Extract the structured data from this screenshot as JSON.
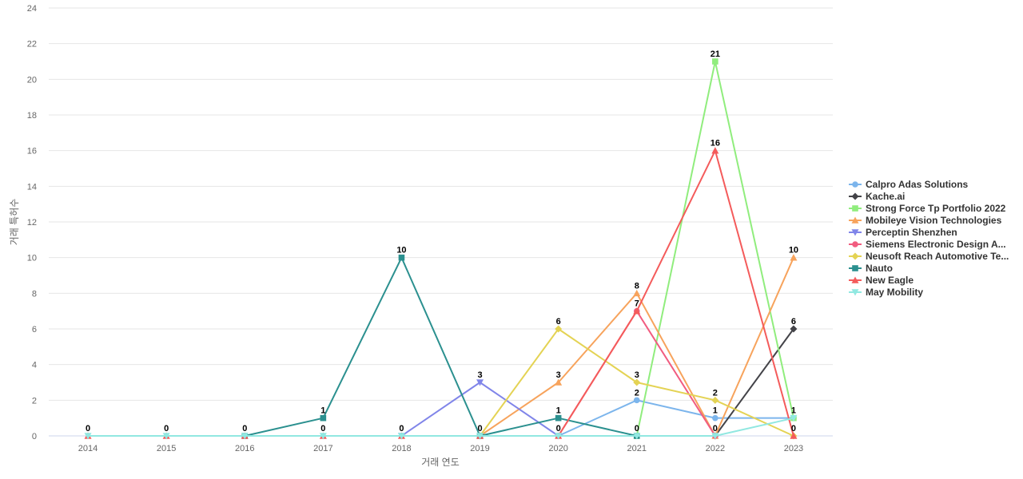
{
  "chart_data": {
    "type": "line",
    "xlabel": "거래 연도",
    "ylabel": "거래 특허수",
    "ylim": [
      0,
      24
    ],
    "yticks": [
      0,
      2,
      4,
      6,
      8,
      10,
      12,
      14,
      16,
      18,
      20,
      22,
      24
    ],
    "categories": [
      "2014",
      "2015",
      "2016",
      "2017",
      "2018",
      "2019",
      "2020",
      "2021",
      "2022",
      "2023"
    ],
    "grid": true,
    "legend_position": "right",
    "series": [
      {
        "name": "Calpro Adas Solutions",
        "color": "#7cb5ec",
        "marker": "circle",
        "values": [
          null,
          null,
          null,
          null,
          null,
          null,
          0,
          2,
          1,
          1
        ]
      },
      {
        "name": "Kache.ai",
        "color": "#434348",
        "marker": "diamond",
        "values": [
          null,
          null,
          null,
          null,
          null,
          null,
          null,
          null,
          0,
          6
        ]
      },
      {
        "name": "Strong Force Tp Portfolio 2022",
        "color": "#90ed7d",
        "marker": "square",
        "values": [
          null,
          null,
          null,
          null,
          null,
          null,
          null,
          0,
          21,
          1
        ]
      },
      {
        "name": "Mobileye Vision Technologies",
        "color": "#f7a35c",
        "marker": "triangle",
        "values": [
          null,
          null,
          null,
          null,
          null,
          0,
          3,
          8,
          0,
          10
        ]
      },
      {
        "name": "Perceptin Shenzhen",
        "color": "#8085e9",
        "marker": "triangle-down",
        "values": [
          null,
          null,
          null,
          null,
          0,
          3,
          0,
          null,
          null,
          null
        ]
      },
      {
        "name": "Siemens Electronic Design A...",
        "color": "#f15c80",
        "marker": "circle",
        "values": [
          null,
          null,
          null,
          null,
          null,
          null,
          0,
          7,
          0,
          null
        ]
      },
      {
        "name": "Neusoft Reach Automotive Te...",
        "color": "#e4d354",
        "marker": "diamond",
        "values": [
          null,
          null,
          null,
          null,
          null,
          0,
          6,
          3,
          2,
          0
        ]
      },
      {
        "name": "Nauto",
        "color": "#2b908f",
        "marker": "square",
        "values": [
          null,
          null,
          0,
          1,
          10,
          0,
          1,
          0,
          null,
          null
        ]
      },
      {
        "name": "New Eagle",
        "color": "#f45b5b",
        "marker": "triangle",
        "values": [
          0,
          0,
          0,
          0,
          0,
          0,
          0,
          7,
          16,
          0
        ]
      },
      {
        "name": "May Mobility",
        "color": "#91e8e1",
        "marker": "triangle-down",
        "values": [
          0,
          0,
          0,
          0,
          0,
          0,
          0,
          0,
          0,
          1
        ]
      }
    ],
    "data_labels": [
      {
        "category": "2014",
        "value": 0,
        "text": "0"
      },
      {
        "category": "2015",
        "value": 0,
        "text": "0"
      },
      {
        "category": "2016",
        "value": 0,
        "text": "0"
      },
      {
        "category": "2017",
        "value": 1,
        "text": "1"
      },
      {
        "category": "2017",
        "value": 0,
        "text": "0"
      },
      {
        "category": "2018",
        "value": 10,
        "text": "10"
      },
      {
        "category": "2018",
        "value": 0,
        "text": "0"
      },
      {
        "category": "2019",
        "value": 3,
        "text": "3"
      },
      {
        "category": "2019",
        "value": 0,
        "text": "0"
      },
      {
        "category": "2020",
        "value": 6,
        "text": "6"
      },
      {
        "category": "2020",
        "value": 3,
        "text": "3"
      },
      {
        "category": "2020",
        "value": 1,
        "text": "1"
      },
      {
        "category": "2020",
        "value": 0,
        "text": "0"
      },
      {
        "category": "2021",
        "value": 8,
        "text": "8"
      },
      {
        "category": "2021",
        "value": 7,
        "text": "7"
      },
      {
        "category": "2021",
        "value": 3,
        "text": "3"
      },
      {
        "category": "2021",
        "value": 2,
        "text": "2"
      },
      {
        "category": "2021",
        "value": 0,
        "text": "0"
      },
      {
        "category": "2022",
        "value": 21,
        "text": "21"
      },
      {
        "category": "2022",
        "value": 16,
        "text": "16"
      },
      {
        "category": "2022",
        "value": 2,
        "text": "2"
      },
      {
        "category": "2022",
        "value": 1,
        "text": "1"
      },
      {
        "category": "2022",
        "value": 0,
        "text": "0"
      },
      {
        "category": "2023",
        "value": 10,
        "text": "10"
      },
      {
        "category": "2023",
        "value": 6,
        "text": "6"
      },
      {
        "category": "2023",
        "value": 1,
        "text": "1"
      },
      {
        "category": "2023",
        "value": 0,
        "text": "0"
      }
    ]
  }
}
